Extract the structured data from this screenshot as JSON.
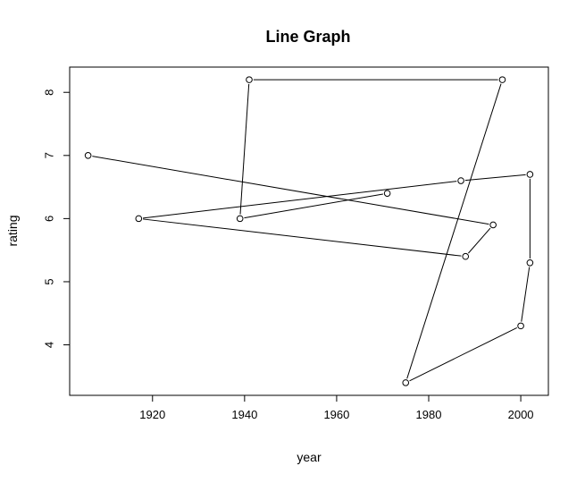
{
  "chart_data": {
    "type": "line",
    "title": "Line Graph",
    "xlabel": "year",
    "ylabel": "rating",
    "xlim": [
      1902,
      2006
    ],
    "ylim": [
      3.2,
      8.4
    ],
    "x_ticks": [
      1920,
      1940,
      1960,
      1980,
      2000
    ],
    "y_ticks": [
      4,
      5,
      6,
      7,
      8
    ],
    "grid": false,
    "markers": "open-circle",
    "series": [
      {
        "points": [
          {
            "x": 1906,
            "y": 7.0
          },
          {
            "x": 1994,
            "y": 5.9
          },
          {
            "x": 1988,
            "y": 5.4
          },
          {
            "x": 1917,
            "y": 6.0
          },
          {
            "x": 1987,
            "y": 6.6
          },
          {
            "x": 2002,
            "y": 6.7
          },
          {
            "x": 2002,
            "y": 5.3
          },
          {
            "x": 2000,
            "y": 4.3
          },
          {
            "x": 1975,
            "y": 3.4
          },
          {
            "x": 1996,
            "y": 8.2
          },
          {
            "x": 1941,
            "y": 8.2
          },
          {
            "x": 1939,
            "y": 6.0
          },
          {
            "x": 1971,
            "y": 6.4
          }
        ]
      }
    ]
  }
}
